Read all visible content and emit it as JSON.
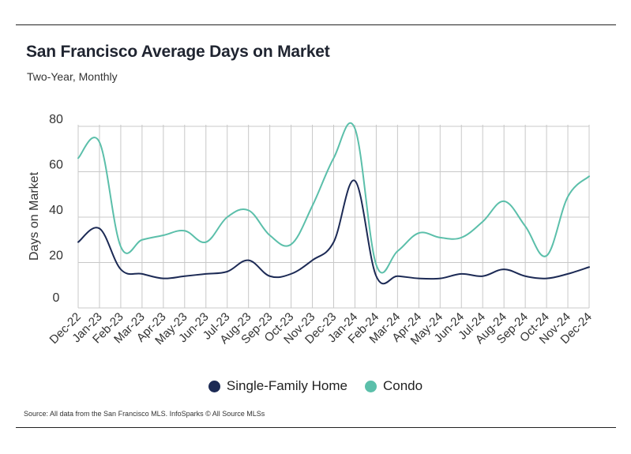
{
  "header": {
    "title": "San Francisco Average Days on Market",
    "subtitle": "Two-Year, Monthly"
  },
  "footer": {
    "source": "Source:  All data from the San Francisco MLS. InfoSparks © All Source MLSs"
  },
  "colors": {
    "single_family": "#1c2a55",
    "condo": "#5bbfaa",
    "grid": "#c8c8c8",
    "axis": "#888888"
  },
  "chart_data": {
    "type": "line",
    "title": "San Francisco Average Days on Market",
    "subtitle": "Two-Year, Monthly",
    "xlabel": "",
    "ylabel": "Days on Market",
    "ylim": [
      0,
      80
    ],
    "yticks": [
      0,
      20,
      40,
      60,
      80
    ],
    "grid": "vertical and horizontal",
    "legend_position": "bottom",
    "categories": [
      "Dec-22",
      "Jan-23",
      "Feb-23",
      "Mar-23",
      "Apr-23",
      "May-23",
      "Jun-23",
      "Jul-23",
      "Aug-23",
      "Sep-23",
      "Oct-23",
      "Nov-23",
      "Dec-23",
      "Jan-24",
      "Feb-24",
      "Mar-24",
      "Apr-24",
      "May-24",
      "Jun-24",
      "Jul-24",
      "Aug-24",
      "Sep-24",
      "Oct-24",
      "Nov-24",
      "Dec-24"
    ],
    "series": [
      {
        "name": "Single-Family Home",
        "color": "#1c2a55",
        "values": [
          29,
          35,
          17,
          15,
          13,
          14,
          15,
          16,
          21,
          14,
          15,
          21,
          29,
          56,
          14,
          14,
          13,
          13,
          15,
          14,
          17,
          14,
          13,
          15,
          18
        ]
      },
      {
        "name": "Condo",
        "color": "#5bbfaa",
        "values": [
          66,
          73,
          27,
          30,
          32,
          34,
          29,
          40,
          43,
          32,
          28,
          45,
          66,
          79,
          19,
          25,
          33,
          31,
          31,
          38,
          47,
          36,
          23,
          49,
          58
        ]
      }
    ]
  }
}
